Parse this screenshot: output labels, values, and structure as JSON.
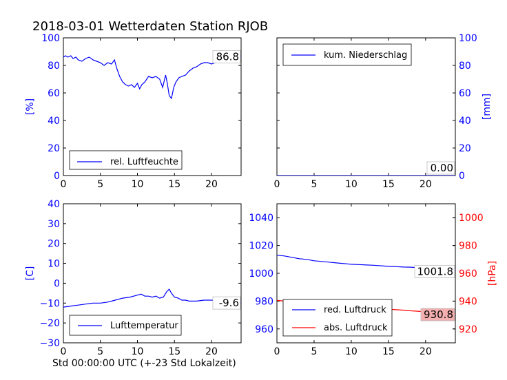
{
  "title": "2018-03-01 Wetterdaten Station RJOB",
  "xlabel": "Std 00:00:00 UTC (+-23 Std Lokalzeit)",
  "colors": {
    "primary": "#0000ff",
    "secondary": "#ff0000",
    "label_box_red": "#f4b0b0"
  },
  "chart_data": [
    {
      "type": "line",
      "xlim": [
        0,
        24
      ],
      "xticks": [
        0,
        5,
        10,
        15,
        20
      ],
      "ylim": [
        0,
        100
      ],
      "yticks": [
        0,
        20,
        40,
        60,
        80,
        100
      ],
      "ylabel": "[%]",
      "legend_position": "lower-left",
      "series": [
        {
          "name": "rel. Luftfeuchte",
          "color": "#0000ff",
          "x": [
            0,
            0.3,
            0.6,
            1,
            1.3,
            1.7,
            2,
            2.5,
            3,
            3.5,
            4,
            4.5,
            5,
            5.5,
            6,
            6.5,
            6.9,
            7.2,
            7.6,
            8,
            8.4,
            8.8,
            9.2,
            9.6,
            10,
            10.3,
            10.6,
            11,
            11.5,
            12,
            12.5,
            13,
            13.4,
            13.8,
            14,
            14.3,
            14.6,
            14.9,
            15.2,
            15.6,
            16,
            16.5,
            17,
            17.5,
            18,
            18.5,
            19,
            19.5,
            20,
            20.5,
            21,
            21.5,
            22,
            22.5,
            23,
            23.5,
            24
          ],
          "y": [
            86,
            87,
            86,
            87,
            85,
            86,
            84,
            83,
            85,
            86,
            84,
            83,
            82,
            80,
            82,
            81,
            84,
            78,
            72,
            68,
            66,
            65,
            66,
            64,
            67,
            63,
            66,
            68,
            72,
            71,
            72,
            70,
            64,
            73,
            68,
            58,
            56,
            64,
            68,
            71,
            72,
            73,
            76,
            78,
            79,
            81,
            82,
            82,
            81,
            82,
            83,
            85,
            86,
            87,
            86.5,
            86.8,
            86.8
          ]
        }
      ],
      "last_value_label": "86.8"
    },
    {
      "type": "line",
      "xlim": [
        0,
        24
      ],
      "xticks": [
        0,
        5,
        10,
        15,
        20
      ],
      "ylim": [
        0,
        100
      ],
      "yticks": [
        0,
        20,
        40,
        60,
        80,
        100
      ],
      "ylabel": "[mm]",
      "legend_position": "upper-left",
      "series": [
        {
          "name": "kum. Niederschlag",
          "color": "#0000ff",
          "x": [
            0,
            24
          ],
          "y": [
            0,
            0
          ]
        }
      ],
      "last_value_label": "0.00"
    },
    {
      "type": "line",
      "xlim": [
        0,
        24
      ],
      "xticks": [
        0,
        5,
        10,
        15,
        20
      ],
      "ylim": [
        -30,
        40
      ],
      "yticks": [
        -30,
        -20,
        -10,
        0,
        10,
        20,
        30,
        40
      ],
      "ylabel": "[C]",
      "legend_position": "lower-left",
      "series": [
        {
          "name": "Lufttemperatur",
          "color": "#0000ff",
          "x": [
            0,
            1,
            2,
            3,
            4,
            5,
            6,
            7,
            8,
            9,
            10,
            10.5,
            11,
            11.5,
            12,
            12.5,
            13,
            13.5,
            14,
            14.3,
            14.6,
            15,
            15.5,
            16,
            16.5,
            17,
            18,
            19,
            20,
            21,
            22,
            23,
            24
          ],
          "y": [
            -12,
            -11.5,
            -11,
            -10.5,
            -10,
            -10,
            -9.5,
            -8.5,
            -7.5,
            -7,
            -6,
            -5.5,
            -6.5,
            -6.5,
            -7,
            -6.5,
            -7.5,
            -7,
            -4,
            -3,
            -5,
            -7,
            -7.5,
            -8.5,
            -8.5,
            -9,
            -9,
            -8.5,
            -8.5,
            -9,
            -9.2,
            -9.5,
            -9.6
          ]
        }
      ],
      "last_value_label": "-9.6"
    },
    {
      "type": "line",
      "xlim": [
        0,
        24
      ],
      "xticks": [
        0,
        5,
        10,
        15,
        20
      ],
      "ylim": [
        950,
        1050
      ],
      "yticks": [
        960,
        980,
        1000,
        1020,
        1040
      ],
      "ylim_right": [
        910,
        1010
      ],
      "yticks_right": [
        920,
        940,
        960,
        980,
        1000
      ],
      "ylabel_right": "[hPa]",
      "legend_position": "lower-left",
      "series": [
        {
          "name": "red. Luftdruck",
          "color": "#0000ff",
          "axis": "left",
          "x": [
            0,
            1,
            2,
            3,
            4,
            5,
            6,
            7,
            8,
            9,
            10,
            11,
            12,
            13,
            14,
            15,
            16,
            17,
            18,
            19,
            20,
            21,
            22,
            23,
            24
          ],
          "y": [
            1013,
            1012.5,
            1011.5,
            1010.5,
            1010,
            1009,
            1008.5,
            1008,
            1007.5,
            1007,
            1006.5,
            1006.3,
            1006,
            1005.8,
            1005.4,
            1005,
            1004.8,
            1004.5,
            1004.4,
            1004,
            1003.5,
            1003,
            1002.5,
            1002,
            1001.8
          ]
        },
        {
          "name": "abs. Luftdruck",
          "color": "#ff0000",
          "axis": "right",
          "x": [
            0,
            1,
            2,
            3,
            4,
            5,
            6,
            7,
            8,
            9,
            10,
            11,
            12,
            13,
            14,
            15,
            16,
            17,
            18,
            19,
            20,
            21,
            22,
            23,
            24
          ],
          "y": [
            940.5,
            940,
            939.5,
            939,
            938.5,
            938,
            937.5,
            937,
            937,
            936.5,
            936,
            935.5,
            935.3,
            935,
            934.5,
            934.2,
            933.8,
            933.5,
            933,
            932.7,
            932.3,
            932,
            931.5,
            931,
            930.8
          ]
        }
      ],
      "last_value_labels": [
        "1001.8",
        "930.8"
      ]
    }
  ]
}
